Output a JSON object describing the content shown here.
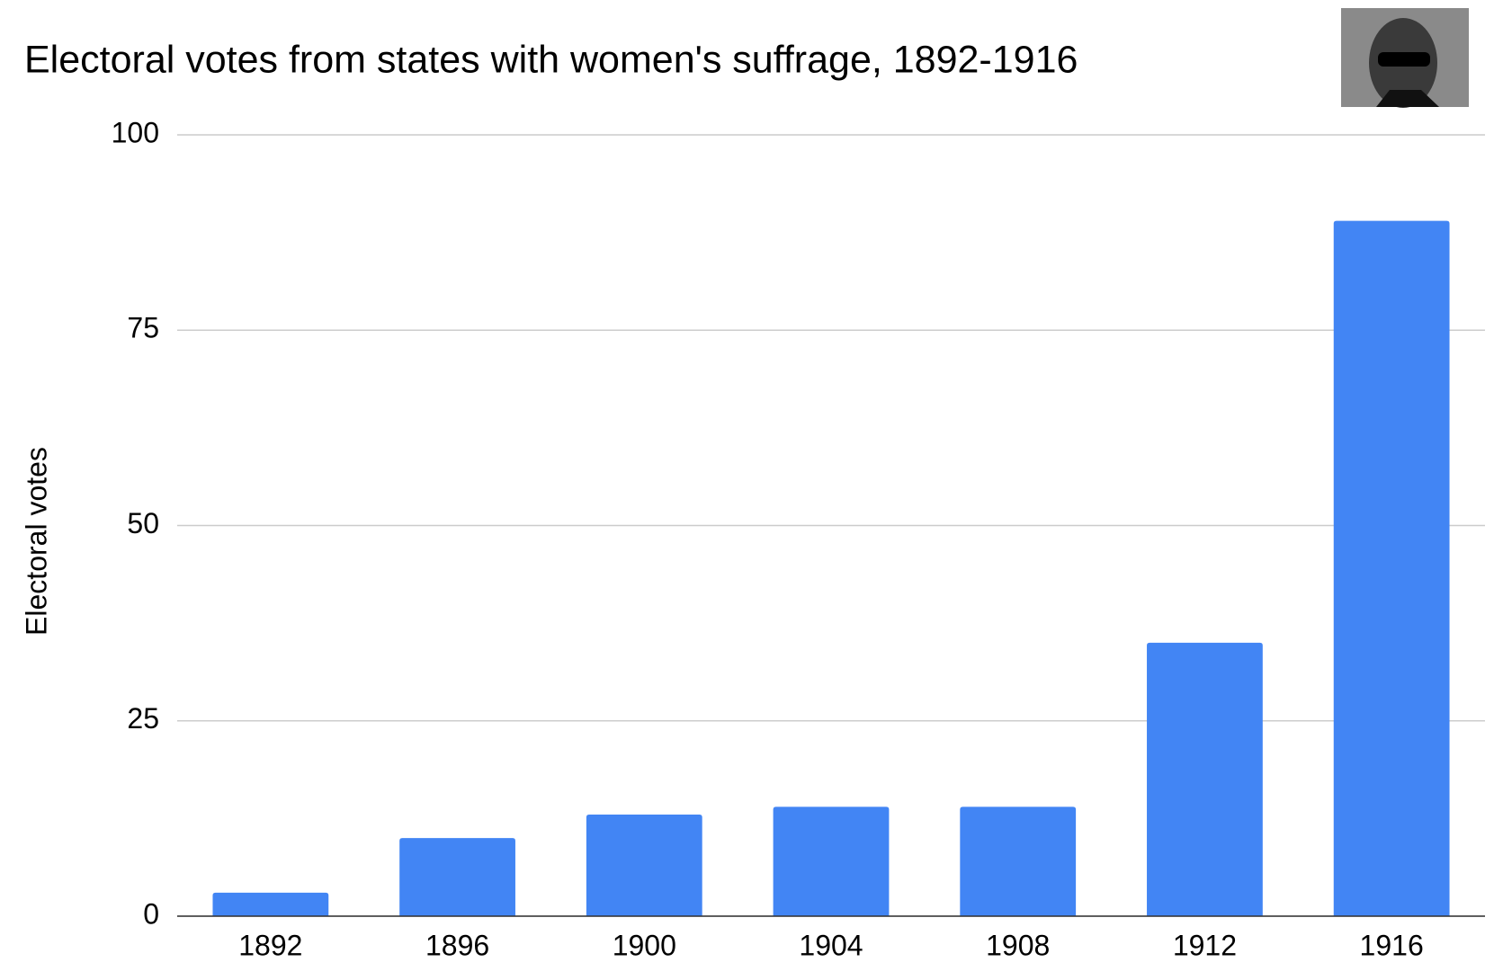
{
  "chart_data": {
    "type": "bar",
    "title": "Electoral votes from states with women's suffrage, 1892-1916",
    "y_label": "Electoral votes",
    "categories": [
      "1892",
      "1896",
      "1900",
      "1904",
      "1908",
      "1912",
      "1916"
    ],
    "values": [
      3,
      10,
      13,
      14,
      14,
      35,
      89
    ],
    "color": "#4285f4",
    "ylim": [
      0,
      100
    ],
    "yticks": [
      0,
      25,
      50,
      75,
      100
    ],
    "grid": true
  }
}
